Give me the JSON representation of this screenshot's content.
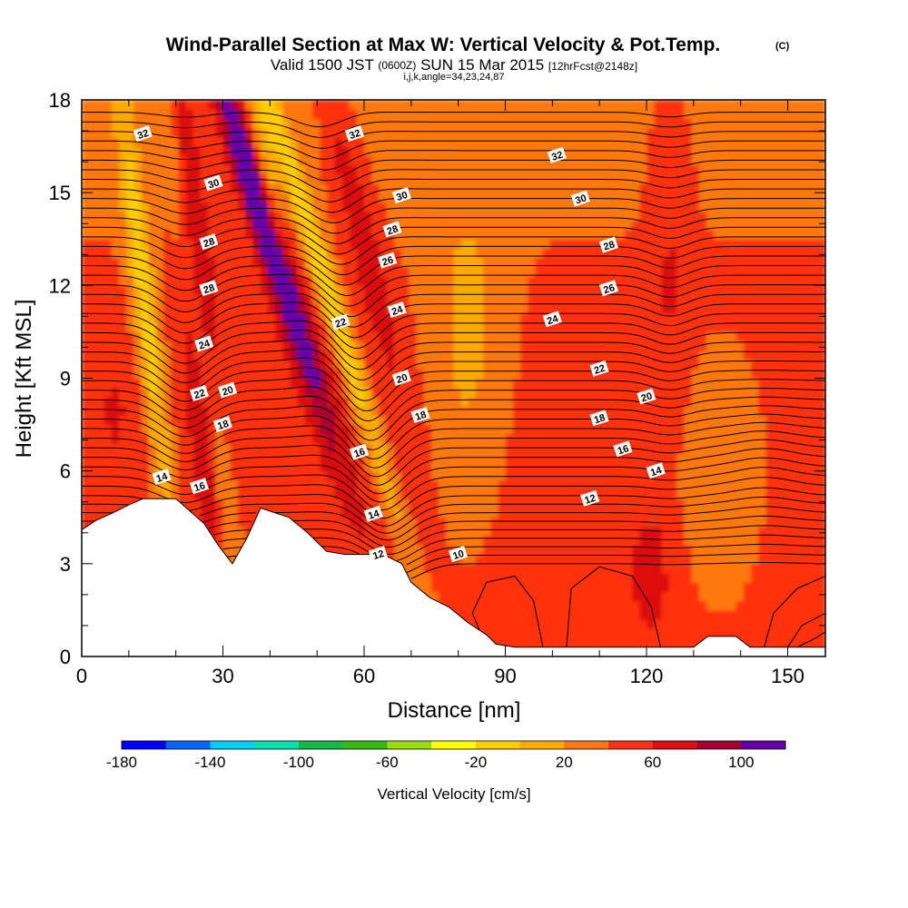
{
  "header": {
    "title": "Wind-Parallel Section at Max W: Vertical Velocity & Pot.Temp.",
    "title_mark": "(C)",
    "subtitle_pre": "Valid 1500 JST",
    "subtitle_small1": "(0600Z)",
    "subtitle_mid": "SUN 15 Mar 2015",
    "subtitle_small2": "[12hrFcst@2148z]",
    "subtitle_line3": "i,j,k,angle=34,23,24,87"
  },
  "chart_data": {
    "type": "heatmap",
    "xlabel": "Distance [nm]",
    "ylabel": "Height [Kft MSL]",
    "xlim": [
      0,
      158
    ],
    "ylim": [
      0,
      18
    ],
    "xticks": [
      0,
      30,
      60,
      90,
      120,
      150
    ],
    "yticks": [
      0,
      3,
      6,
      9,
      12,
      15,
      18
    ],
    "terrain": [
      [
        0,
        4.1
      ],
      [
        3,
        4.4
      ],
      [
        6,
        4.6
      ],
      [
        10,
        4.9
      ],
      [
        13,
        5.1
      ],
      [
        20,
        5.1
      ],
      [
        23,
        4.7
      ],
      [
        26,
        4.3
      ],
      [
        29,
        3.6
      ],
      [
        32,
        3.0
      ],
      [
        35,
        3.8
      ],
      [
        38,
        4.8
      ],
      [
        44,
        4.5
      ],
      [
        48,
        4.0
      ],
      [
        52,
        3.4
      ],
      [
        56,
        3.3
      ],
      [
        64,
        3.3
      ],
      [
        68,
        3.0
      ],
      [
        70,
        2.4
      ],
      [
        74,
        1.9
      ],
      [
        78,
        1.6
      ],
      [
        82,
        1.1
      ],
      [
        86,
        0.7
      ],
      [
        88,
        0.4
      ],
      [
        92,
        0.3
      ],
      [
        130,
        0.3
      ],
      [
        133,
        0.65
      ],
      [
        139,
        0.65
      ],
      [
        142,
        0.3
      ],
      [
        158,
        0.3
      ]
    ],
    "colorbar": {
      "label": "Vertical Velocity [cm/s]",
      "ticks": [
        "-180",
        "-140",
        "-100",
        "-60",
        "-20",
        "20",
        "60",
        "100"
      ],
      "colors": [
        "#0000ff",
        "#0066ff",
        "#00ccff",
        "#00e0b0",
        "#11bb44",
        "#33bb11",
        "#99dd11",
        "#ffff00",
        "#ffcc00",
        "#ffaa00",
        "#ff7711",
        "#ff3311",
        "#dd1111",
        "#aa0033",
        "#6600aa"
      ]
    },
    "theta_labels": [
      {
        "text": "32",
        "x": 13,
        "z": 16.9
      },
      {
        "text": "32",
        "x": 58,
        "z": 16.9
      },
      {
        "text": "32",
        "x": 101,
        "z": 16.2
      },
      {
        "text": "30",
        "x": 28,
        "z": 15.3
      },
      {
        "text": "30",
        "x": 68,
        "z": 14.9
      },
      {
        "text": "30",
        "x": 106,
        "z": 14.8
      },
      {
        "text": "28",
        "x": 27,
        "z": 13.4
      },
      {
        "text": "28",
        "x": 66,
        "z": 13.8
      },
      {
        "text": "28",
        "x": 112,
        "z": 13.3
      },
      {
        "text": "28",
        "x": 27,
        "z": 11.9
      },
      {
        "text": "26",
        "x": 65,
        "z": 12.8
      },
      {
        "text": "26",
        "x": 112,
        "z": 11.9
      },
      {
        "text": "24",
        "x": 26,
        "z": 10.1
      },
      {
        "text": "24",
        "x": 67,
        "z": 11.2
      },
      {
        "text": "24",
        "x": 100,
        "z": 10.9
      },
      {
        "text": "22",
        "x": 25,
        "z": 8.5
      },
      {
        "text": "22",
        "x": 55,
        "z": 10.8
      },
      {
        "text": "22",
        "x": 110,
        "z": 9.3
      },
      {
        "text": "20",
        "x": 31,
        "z": 8.6
      },
      {
        "text": "20",
        "x": 68,
        "z": 9.0
      },
      {
        "text": "20",
        "x": 120,
        "z": 8.4
      },
      {
        "text": "18",
        "x": 30,
        "z": 7.5
      },
      {
        "text": "18",
        "x": 72,
        "z": 7.8
      },
      {
        "text": "18",
        "x": 110,
        "z": 7.7
      },
      {
        "text": "16",
        "x": 59,
        "z": 6.6
      },
      {
        "text": "16",
        "x": 25,
        "z": 5.5
      },
      {
        "text": "16",
        "x": 115,
        "z": 6.7
      },
      {
        "text": "14",
        "x": 17,
        "z": 5.8
      },
      {
        "text": "14",
        "x": 62,
        "z": 4.6
      },
      {
        "text": "14",
        "x": 122,
        "z": 6.0
      },
      {
        "text": "12",
        "x": 63,
        "z": 3.3
      },
      {
        "text": "12",
        "x": 108,
        "z": 5.1
      },
      {
        "text": "10",
        "x": 80,
        "z": 3.3
      }
    ]
  }
}
